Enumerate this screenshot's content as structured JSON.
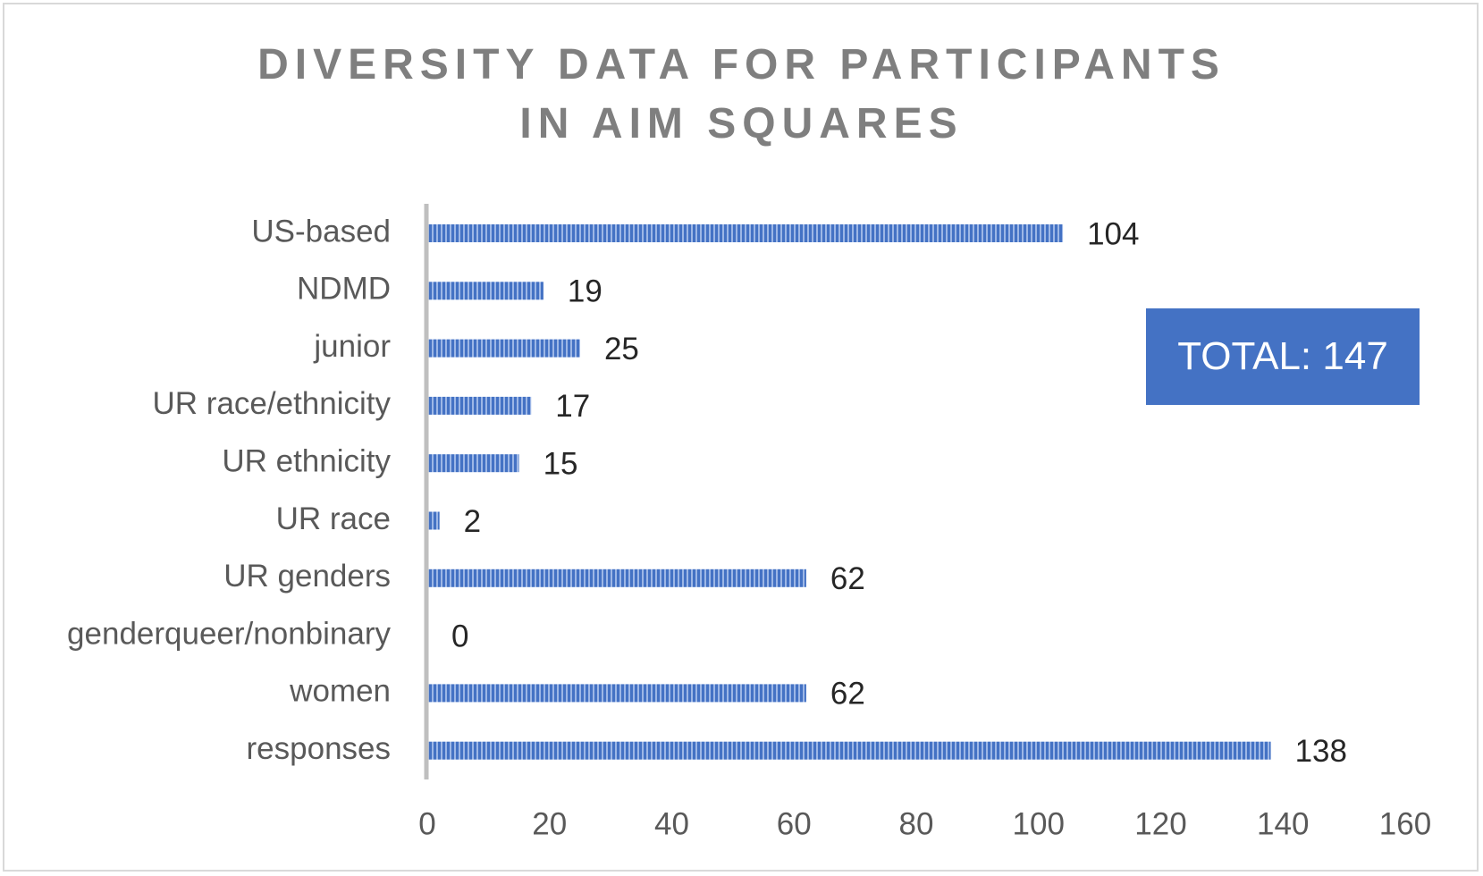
{
  "chart_data": {
    "type": "bar",
    "orientation": "horizontal",
    "title_lines": [
      "DIVERSITY DATA FOR PARTICIPANTS",
      "IN AIM SQUARES"
    ],
    "categories": [
      "US-based",
      "NDMD",
      "junior",
      "UR race/ethnicity",
      "UR ethnicity",
      "UR race",
      "UR genders",
      "genderqueer/nonbinary",
      "women",
      "responses"
    ],
    "values": [
      104,
      19,
      25,
      17,
      15,
      2,
      62,
      0,
      62,
      138
    ],
    "xlim": [
      0,
      160
    ],
    "xticks": [
      0,
      20,
      40,
      60,
      80,
      100,
      120,
      140,
      160
    ],
    "grid": false,
    "bar_color": "#4472c4",
    "bar_pattern": "vertical-stripes",
    "data_labels": true,
    "annotation": "TOTAL: 147"
  },
  "colors": {
    "title": "#7f7f7f",
    "axis_text": "#595959",
    "value_text": "#262626",
    "axis_line": "#bfbfbf",
    "annotation_bg": "#4472c4",
    "annotation_text": "#ffffff"
  }
}
